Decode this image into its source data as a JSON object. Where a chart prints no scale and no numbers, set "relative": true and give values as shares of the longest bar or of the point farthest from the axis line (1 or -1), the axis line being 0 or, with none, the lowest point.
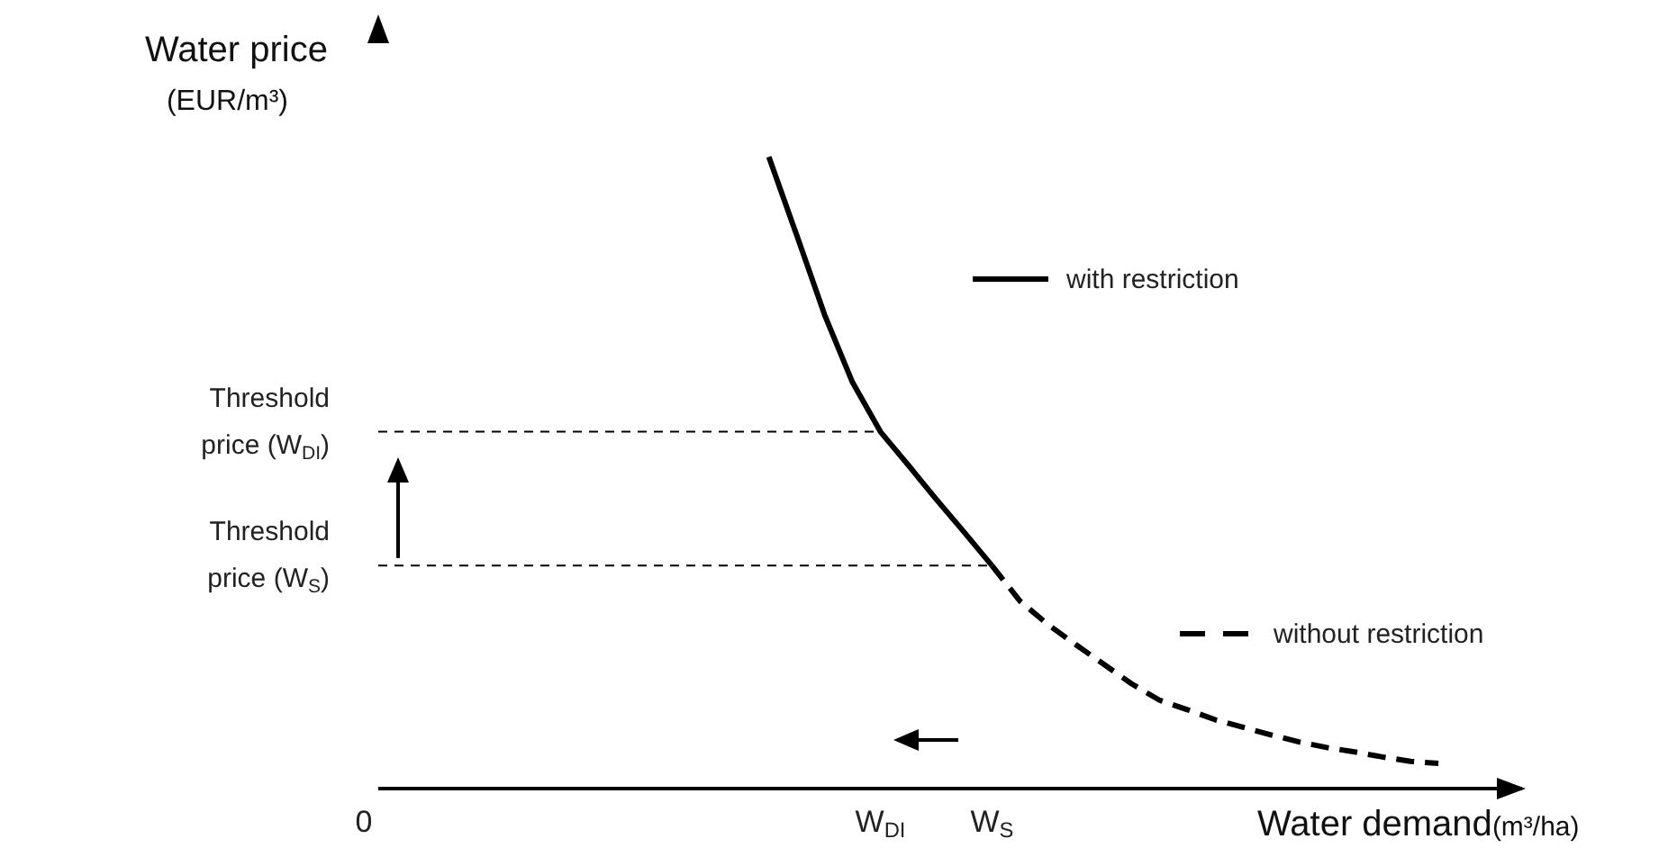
{
  "chart_data": {
    "type": "line",
    "relative": true,
    "xlabel": "Water demand(m³/ha)",
    "ylabel": "Water price (EUR/m³)",
    "categories": [
      "0",
      null,
      null,
      null,
      null,
      null,
      null,
      null,
      null,
      null,
      null,
      null,
      null,
      null,
      null,
      null,
      null,
      null,
      "W$_{DI}$",
      null,
      null,
      null,
      "W$_{S}$",
      null,
      null,
      null,
      null,
      null,
      null,
      null,
      null,
      null,
      null,
      null,
      null,
      null,
      null,
      null,
      null,
      null,
      null,
      null
    ],
    "legend": "right",
    "series": [
      {
        "name": "with restriction",
        "color": "#000000",
        "line_style": "solid",
        "values": [
          null,
          null,
          null,
          null,
          null,
          null,
          null,
          null,
          null,
          null,
          null,
          null,
          null,
          null,
          1,
          0.876,
          0.75,
          0.643,
          0.565,
          0.512,
          0.458,
          0.406,
          0.353,
          null,
          null,
          null,
          null,
          null,
          null,
          null,
          null,
          null,
          null,
          null,
          null,
          null,
          null,
          null,
          null,
          null,
          null,
          null
        ]
      },
      {
        "name": "without restriction",
        "color": "#000000",
        "line_style": "dashed",
        "values": [
          null,
          null,
          null,
          null,
          null,
          null,
          null,
          null,
          null,
          null,
          null,
          null,
          null,
          null,
          null,
          null,
          null,
          null,
          null,
          null,
          null,
          null,
          0.353,
          0.297,
          0.26,
          0.228,
          0.197,
          0.166,
          0.14,
          0.125,
          0.109,
          0.097,
          0.085,
          0.074,
          0.065,
          0.058,
          0.05,
          0.043,
          0.04,
          null,
          null,
          null
        ]
      }
    ],
    "ref_lines": [
      {
        "axis": "y",
        "value": 0.565,
        "label": "Threshold price (W$_{DI}$)",
        "color": "#000000",
        "line_style": "dashed"
      },
      {
        "axis": "y",
        "value": 0.353,
        "label": "Threshold price (W$_{S}$)",
        "color": "#000000",
        "line_style": "dashed"
      }
    ]
  }
}
